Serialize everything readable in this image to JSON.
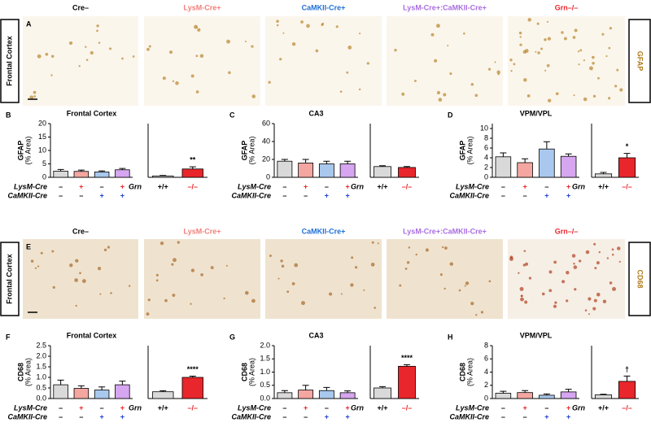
{
  "image_rows": [
    {
      "letter": "A",
      "row_label": "Frontal Cortex",
      "marker": "GFAP",
      "headers": [
        {
          "text": "Cre–",
          "color": "#000000"
        },
        {
          "text": "LysM-Cre+",
          "color": "#f07f78"
        },
        {
          "text": "CaMKII-Cre+",
          "color": "#1f6fd6"
        },
        {
          "text": "LysM-Cre+:CaMKII-Cre+",
          "color": "#a86ee0"
        },
        {
          "text": "Grn–/–",
          "color": "#e8262b"
        }
      ]
    },
    {
      "letter": "E",
      "row_label": "Frontal Cortex",
      "marker": "CD68",
      "headers": [
        {
          "text": "Cre–",
          "color": "#000000"
        },
        {
          "text": "LysM-Cre+",
          "color": "#f07f78"
        },
        {
          "text": "CaMKII-Cre+",
          "color": "#1f6fd6"
        },
        {
          "text": "LysM-Cre+:CaMKII-Cre+",
          "color": "#a86ee0"
        },
        {
          "text": "Grn–/–",
          "color": "#e8262b"
        }
      ]
    }
  ],
  "chart_data": [
    {
      "type": "bar",
      "panel": "B",
      "title": "Frontal Cortex",
      "ylabel": "GFAP",
      "ylabel_unit": "(% Area)",
      "values": [
        2.3,
        2.2,
        2.0,
        2.8
      ],
      "errors": [
        0.6,
        0.5,
        0.4,
        0.5
      ],
      "colors": [
        "#d9d9d9",
        "#f4a6a0",
        "#a9c8ee",
        "#d6a6f0"
      ],
      "ylim": [
        0,
        20
      ],
      "yticks": [
        0,
        5,
        10,
        15,
        20
      ],
      "category_rows": [
        {
          "label": "LysM-Cre",
          "values": [
            "–",
            "+",
            "–",
            "+"
          ],
          "colors": [
            "#000000",
            "#e8262b",
            "#000000",
            "#e8262b"
          ]
        },
        {
          "label": "CaMKII-Cre",
          "values": [
            "–",
            "–",
            "+",
            "+"
          ],
          "colors": [
            "#000000",
            "#000000",
            "#1f3fd6",
            "#1f3fd6"
          ]
        }
      ]
    },
    {
      "type": "bar",
      "category_label": "Grn",
      "categories": [
        "+/+",
        "–/–"
      ],
      "category_colors": [
        "#000000",
        "#e8262b"
      ],
      "values": [
        0.5,
        3.1
      ],
      "errors": [
        0.2,
        0.8
      ],
      "colors": [
        "#d9d9d9",
        "#e8262b"
      ],
      "ylim": [
        0,
        20
      ],
      "annotations": [
        null,
        "**"
      ]
    },
    {
      "type": "bar",
      "panel": "C",
      "title": "CA3",
      "ylabel": "GFAP",
      "ylabel_unit": "(% Area)",
      "values": [
        18,
        16,
        15,
        15
      ],
      "errors": [
        2,
        4,
        3,
        3
      ],
      "colors": [
        "#d9d9d9",
        "#f4a6a0",
        "#a9c8ee",
        "#d6a6f0"
      ],
      "ylim": [
        0,
        60
      ],
      "yticks": [
        0,
        20,
        40,
        60
      ],
      "category_rows": [
        {
          "label": "LysM-Cre",
          "values": [
            "–",
            "+",
            "–",
            "+"
          ],
          "colors": [
            "#000000",
            "#e8262b",
            "#000000",
            "#e8262b"
          ]
        },
        {
          "label": "CaMKII-Cre",
          "values": [
            "–",
            "–",
            "+",
            "+"
          ],
          "colors": [
            "#000000",
            "#000000",
            "#1f3fd6",
            "#1f3fd6"
          ]
        }
      ]
    },
    {
      "type": "bar",
      "category_label": "Grn",
      "categories": [
        "+/+",
        "–/–"
      ],
      "category_colors": [
        "#000000",
        "#e8262b"
      ],
      "values": [
        12,
        11
      ],
      "errors": [
        1,
        1
      ],
      "colors": [
        "#d9d9d9",
        "#e8262b"
      ],
      "ylim": [
        0,
        60
      ]
    },
    {
      "type": "bar",
      "panel": "D",
      "title": "VPM/VPL",
      "ylabel": "GFAP",
      "ylabel_unit": "(% Area)",
      "values": [
        4.2,
        3.0,
        5.8,
        4.3
      ],
      "errors": [
        0.8,
        0.8,
        1.5,
        0.5
      ],
      "colors": [
        "#d9d9d9",
        "#f4a6a0",
        "#a9c8ee",
        "#d6a6f0"
      ],
      "ylim": [
        0,
        11
      ],
      "yticks": [
        0,
        2,
        4,
        6,
        8,
        10
      ],
      "category_rows": [
        {
          "label": "LysM-Cre",
          "values": [
            "–",
            "+",
            "–",
            "+"
          ],
          "colors": [
            "#000000",
            "#e8262b",
            "#000000",
            "#e8262b"
          ]
        },
        {
          "label": "CaMKII-Cre",
          "values": [
            "–",
            "–",
            "+",
            "+"
          ],
          "colors": [
            "#000000",
            "#000000",
            "#1f3fd6",
            "#1f3fd6"
          ]
        }
      ]
    },
    {
      "type": "bar",
      "category_label": "Grn",
      "categories": [
        "+/+",
        "–/–"
      ],
      "category_colors": [
        "#000000",
        "#e8262b"
      ],
      "values": [
        0.7,
        4.0
      ],
      "errors": [
        0.3,
        0.9
      ],
      "colors": [
        "#d9d9d9",
        "#e8262b"
      ],
      "ylim": [
        0,
        11
      ],
      "annotations": [
        null,
        "*"
      ]
    },
    {
      "type": "bar",
      "panel": "F",
      "title": "Frontal Cortex",
      "ylabel": "CD68",
      "ylabel_unit": "(% Area)",
      "values": [
        0.65,
        0.48,
        0.4,
        0.65
      ],
      "errors": [
        0.22,
        0.12,
        0.15,
        0.17
      ],
      "colors": [
        "#d9d9d9",
        "#f4a6a0",
        "#a9c8ee",
        "#d6a6f0"
      ],
      "ylim": [
        0,
        2.5
      ],
      "yticks": [
        {
          "value": 0,
          "label": "0.0"
        },
        0.5,
        {
          "value": 1,
          "label": "1.0"
        },
        1.5,
        {
          "value": 2,
          "label": "2.0"
        },
        2.5
      ],
      "category_rows": [
        {
          "label": "LysM-Cre",
          "values": [
            "–",
            "+",
            "–",
            "+"
          ],
          "colors": [
            "#000000",
            "#e8262b",
            "#000000",
            "#e8262b"
          ]
        },
        {
          "label": "CaMKII-Cre",
          "values": [
            "–",
            "–",
            "+",
            "+"
          ],
          "colors": [
            "#000000",
            "#000000",
            "#1f3fd6",
            "#1f3fd6"
          ]
        }
      ]
    },
    {
      "type": "bar",
      "category_label": "Grn",
      "categories": [
        "+/+",
        "–/–"
      ],
      "category_colors": [
        "#000000",
        "#e8262b"
      ],
      "values": [
        0.32,
        1.0
      ],
      "errors": [
        0.05,
        0.06
      ],
      "colors": [
        "#d9d9d9",
        "#e8262b"
      ],
      "ylim": [
        0,
        2.5
      ],
      "annotations": [
        null,
        "****"
      ]
    },
    {
      "type": "bar",
      "panel": "G",
      "title": "CA3",
      "ylabel": "CD68",
      "ylabel_unit": "(% Area)",
      "values": [
        0.22,
        0.32,
        0.3,
        0.22
      ],
      "errors": [
        0.08,
        0.18,
        0.12,
        0.07
      ],
      "colors": [
        "#d9d9d9",
        "#f4a6a0",
        "#a9c8ee",
        "#d6a6f0"
      ],
      "ylim": [
        0,
        2
      ],
      "yticks": [
        {
          "value": 0,
          "label": "0.0"
        },
        0.5,
        {
          "value": 1,
          "label": "1.0"
        },
        1.5,
        {
          "value": 2,
          "label": "2.0"
        }
      ],
      "category_rows": [
        {
          "label": "LysM-Cre",
          "values": [
            "–",
            "+",
            "–",
            "+"
          ],
          "colors": [
            "#000000",
            "#e8262b",
            "#000000",
            "#e8262b"
          ]
        },
        {
          "label": "CaMKII-Cre",
          "values": [
            "–",
            "–",
            "+",
            "+"
          ],
          "colors": [
            "#000000",
            "#000000",
            "#1f3fd6",
            "#1f3fd6"
          ]
        }
      ]
    },
    {
      "type": "bar",
      "category_label": "Grn",
      "categories": [
        "+/+",
        "–/–"
      ],
      "category_colors": [
        "#000000",
        "#e8262b"
      ],
      "values": [
        0.4,
        1.22
      ],
      "errors": [
        0.05,
        0.06
      ],
      "colors": [
        "#d9d9d9",
        "#e8262b"
      ],
      "ylim": [
        0,
        2
      ],
      "annotations": [
        null,
        "****"
      ]
    },
    {
      "type": "bar",
      "panel": "H",
      "title": "VPM/VPL",
      "ylabel": "CD68",
      "ylabel_unit": "(% Area)",
      "values": [
        0.8,
        0.9,
        0.5,
        1.0
      ],
      "errors": [
        0.3,
        0.3,
        0.2,
        0.4
      ],
      "colors": [
        "#d9d9d9",
        "#f4a6a0",
        "#a9c8ee",
        "#d6a6f0"
      ],
      "ylim": [
        0,
        8
      ],
      "yticks": [
        0,
        2,
        4,
        6,
        8
      ],
      "category_rows": [
        {
          "label": "LysM-Cre",
          "values": [
            "–",
            "+",
            "–",
            "+"
          ],
          "colors": [
            "#000000",
            "#e8262b",
            "#000000",
            "#e8262b"
          ]
        },
        {
          "label": "CaMKII-Cre",
          "values": [
            "–",
            "–",
            "+",
            "+"
          ],
          "colors": [
            "#000000",
            "#000000",
            "#1f3fd6",
            "#1f3fd6"
          ]
        }
      ]
    },
    {
      "type": "bar",
      "category_label": "Grn",
      "categories": [
        "+/+",
        "–/–"
      ],
      "category_colors": [
        "#000000",
        "#e8262b"
      ],
      "values": [
        0.55,
        2.6
      ],
      "errors": [
        0.1,
        0.8
      ],
      "colors": [
        "#d9d9d9",
        "#e8262b"
      ],
      "ylim": [
        0,
        8
      ],
      "annotations": [
        null,
        "†"
      ]
    }
  ]
}
